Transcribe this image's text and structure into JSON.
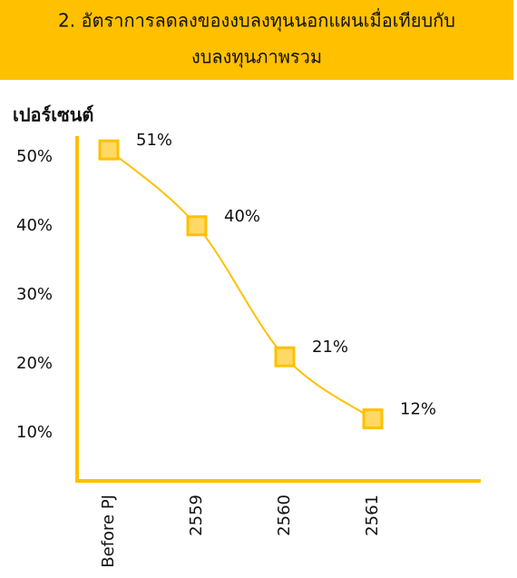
{
  "chart_data": {
    "type": "line",
    "title": [
      "2. อัตราการลดลงของงบลงทุนนอกแผนเมื่อเทียบกับ",
      "งบลงทุนภาพรวม"
    ],
    "y_label": "เปอร์เซนต์",
    "categories": [
      "Before PJ",
      "2559",
      "2560",
      "2561"
    ],
    "values": [
      51,
      40,
      21,
      12
    ],
    "value_labels": [
      "51%",
      "40%",
      "21%",
      "12%"
    ],
    "color": "#FFC000",
    "ylim": [
      3,
      53
    ],
    "yticks": [
      {
        "value": 10,
        "label": "10%"
      },
      {
        "value": 20,
        "label": "20%"
      },
      {
        "value": 30,
        "label": "30%"
      },
      {
        "value": 40,
        "label": "40%"
      },
      {
        "value": 50,
        "label": "50%"
      }
    ]
  }
}
